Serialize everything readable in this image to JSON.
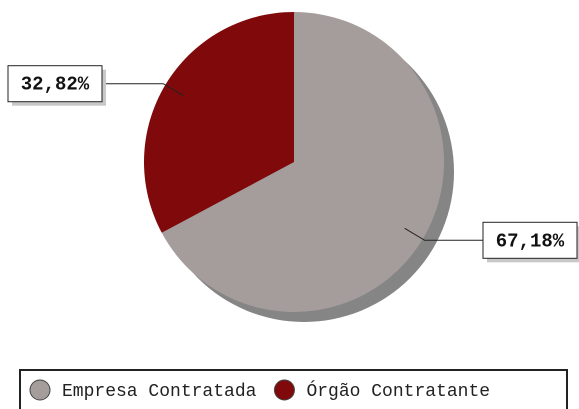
{
  "chart_data": {
    "type": "pie",
    "categories": [
      "Empresa Contratada",
      "Órgão Contratante"
    ],
    "values": [
      67.18,
      32.82
    ],
    "value_labels": [
      "67,18%",
      "32,82%"
    ],
    "colors": [
      "#a59d9c",
      "#800a0b"
    ],
    "legend": "bottom"
  }
}
